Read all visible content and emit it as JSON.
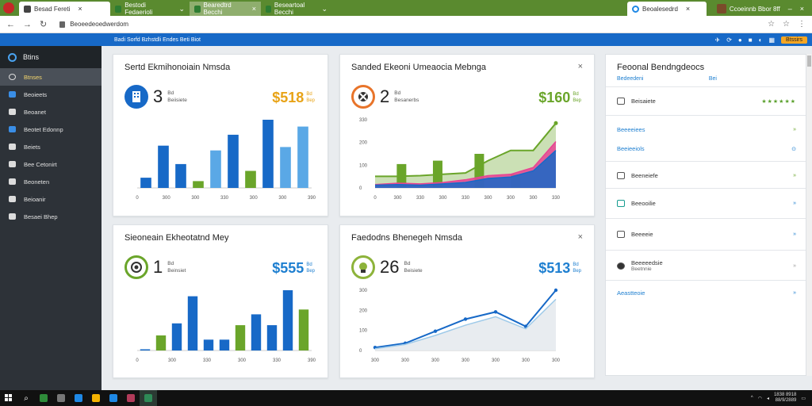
{
  "browser": {
    "tabs": [
      {
        "label": "Besad Fereti"
      },
      {
        "label": "Bestodi Fedaerioli"
      },
      {
        "label": "Bearedtrd Becchi"
      },
      {
        "label": "Beseartoal Becchi"
      }
    ],
    "right_tab": {
      "label": "Beoalesedrd"
    },
    "profile": {
      "label": "Ccoeinnb Bbor 8ff"
    },
    "url": "Beoeedeoedwerdom"
  },
  "banner": {
    "text": "Badi Sorfd Bzhstdli Endes Beti Biot",
    "button": "Btssirs"
  },
  "sidebar": {
    "header": "Btins",
    "items": [
      {
        "label": "Btnses"
      },
      {
        "label": "Beoieets"
      },
      {
        "label": "Beoanet"
      },
      {
        "label": "Beotet Edonnp"
      },
      {
        "label": "Beiets"
      },
      {
        "label": "Bee Cetonirt"
      },
      {
        "label": "Beoneten"
      },
      {
        "label": "Beioanir"
      },
      {
        "label": "Besaei Bhep"
      }
    ]
  },
  "cards": [
    {
      "title": "Sertd Ekmihonoiain Nmsda",
      "count": "3",
      "sub1": "Bd",
      "sub2": "Beiisiete",
      "amount": "$518",
      "amount_sub1": "Bd",
      "amount_sub2": "Bep",
      "amount_color": "#e8a317",
      "badge_color": "#1769c7",
      "closable": false
    },
    {
      "title": "Sanded Ekeoni Umeaocia Mebnga",
      "count": "2",
      "sub1": "Bd",
      "sub2": "Besanerbs",
      "amount": "$160",
      "amount_sub1": "Bd",
      "amount_sub2": "Bep",
      "amount_color": "#6aa52a",
      "badge_color": "#e8742a",
      "closable": true
    },
    {
      "title": "Sieoneain Ekheotatnd Mey",
      "count": "1",
      "sub1": "Bd",
      "sub2": "Beinsiet",
      "amount": "$555",
      "amount_sub1": "Bd",
      "amount_sub2": "Bep",
      "amount_color": "#1e7fd0",
      "badge_color": "#6aa52a",
      "closable": false
    },
    {
      "title": "Faedodns Bhenegeh Nmsda",
      "count": "26",
      "sub1": "Bd",
      "sub2": "Beisiete",
      "amount": "$513",
      "amount_sub1": "Bd",
      "amount_sub2": "Bep",
      "amount_color": "#1e7fd0",
      "badge_color": "#8db33a",
      "closable": true
    }
  ],
  "chart_data": [
    {
      "type": "bar",
      "categories": [
        "0",
        "300",
        "300",
        "330",
        "300",
        "300",
        "390"
      ],
      "x_ticks": [
        "0",
        "300",
        "300",
        "330",
        "300",
        "300",
        "390"
      ],
      "bars": [
        {
          "value": 0.15,
          "color": "#1769c7"
        },
        {
          "value": 0.62,
          "color": "#1769c7"
        },
        {
          "value": 0.35,
          "color": "#1769c7"
        },
        {
          "value": 0.1,
          "color": "#6aa52a"
        },
        {
          "value": 0.55,
          "color": "#5aa8e6"
        },
        {
          "value": 0.78,
          "color": "#1769c7"
        },
        {
          "value": 0.25,
          "color": "#6aa52a"
        },
        {
          "value": 1.0,
          "color": "#1769c7"
        },
        {
          "value": 0.6,
          "color": "#5aa8e6"
        },
        {
          "value": 0.9,
          "color": "#5aa8e6"
        }
      ]
    },
    {
      "type": "area",
      "x_ticks": [
        "0",
        "300",
        "330",
        "300",
        "330",
        "300",
        "300",
        "300",
        "330"
      ],
      "y_ticks": [
        "0",
        "100",
        "200",
        "330"
      ],
      "bars_green": [
        0.35,
        0.4,
        0.5,
        0.2
      ],
      "series": [
        {
          "name": "",
          "color": "#6aa52a",
          "values": [
            0.17,
            0.17,
            0.18,
            0.2,
            0.22,
            0.4,
            0.55,
            0.55,
            0.95
          ]
        },
        {
          "name": "",
          "color": "#e84393",
          "values": [
            0.05,
            0.07,
            0.06,
            0.08,
            0.12,
            0.18,
            0.2,
            0.3,
            0.68
          ]
        },
        {
          "name": "",
          "color": "#1769c7",
          "values": [
            0.04,
            0.05,
            0.04,
            0.06,
            0.08,
            0.14,
            0.16,
            0.25,
            0.55
          ]
        }
      ]
    },
    {
      "type": "bar",
      "x_ticks": [
        "0",
        "300",
        "330",
        "300",
        "330",
        "390"
      ],
      "bars": [
        {
          "value": 0.02,
          "color": "#1769c7"
        },
        {
          "value": 0.25,
          "color": "#6aa52a"
        },
        {
          "value": 0.45,
          "color": "#1769c7"
        },
        {
          "value": 0.9,
          "color": "#1769c7"
        },
        {
          "value": 0.18,
          "color": "#1769c7"
        },
        {
          "value": 0.18,
          "color": "#1769c7"
        },
        {
          "value": 0.42,
          "color": "#6aa52a"
        },
        {
          "value": 0.6,
          "color": "#1769c7"
        },
        {
          "value": 0.42,
          "color": "#1769c7"
        },
        {
          "value": 1.0,
          "color": "#1769c7"
        },
        {
          "value": 0.68,
          "color": "#6aa52a"
        }
      ]
    },
    {
      "type": "line",
      "x_ticks": [
        "300",
        "300",
        "300",
        "300",
        "300",
        "300",
        "300"
      ],
      "y_ticks": [
        "0",
        "100",
        "200",
        "300"
      ],
      "series": [
        {
          "name": "",
          "color": "#1769c7",
          "values": [
            0.05,
            0.12,
            0.32,
            0.52,
            0.64,
            0.4,
            1.0
          ]
        },
        {
          "name": "",
          "color": "#9ecae9",
          "values": [
            0.03,
            0.1,
            0.25,
            0.42,
            0.56,
            0.36,
            0.85
          ]
        }
      ]
    }
  ],
  "panel": {
    "title": "Feoonal Bendngdeocs",
    "sub": "Bedeedeni",
    "sub2": "Bei",
    "rows": [
      {
        "label": "Beisaiete",
        "end": "★★★★★★",
        "type": "stars"
      },
      {
        "label": "Beeeeiees",
        "end": "»",
        "type": "link"
      },
      {
        "label": "Beeieeiols",
        "end": "⊙",
        "type": "link"
      },
      {
        "label": "Beeneiefe",
        "end": "»",
        "type": "plain"
      },
      {
        "label": "Beeooilie",
        "end": "»",
        "type": "plain"
      },
      {
        "label": "Beeeeie",
        "end": "»",
        "type": "plain"
      },
      {
        "label": "Beeeeedsie",
        "end": "»",
        "type": "plain"
      },
      {
        "label": "Beetnnie",
        "end": "»",
        "type": "plain"
      },
      {
        "label": "Aeastteoie",
        "end": "»",
        "type": "link"
      }
    ]
  },
  "taskbar": {
    "time": "1838 8918",
    "date": "88/9/2889"
  }
}
